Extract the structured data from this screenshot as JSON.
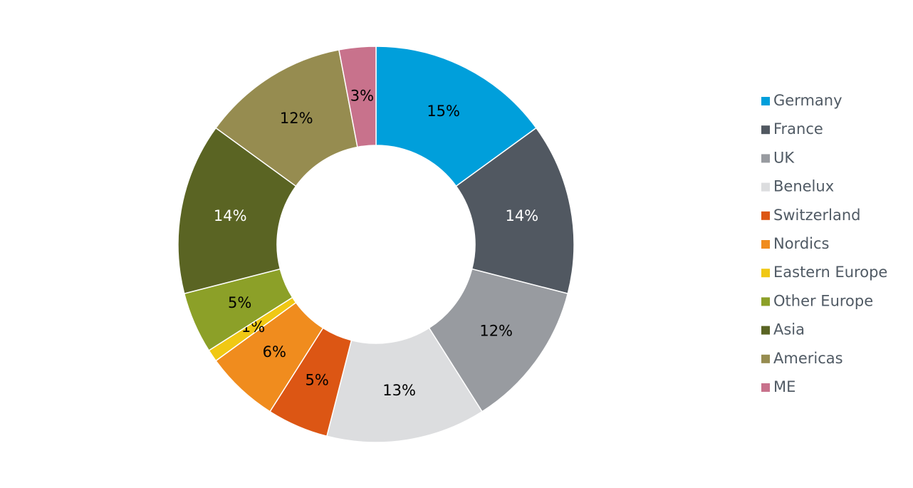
{
  "chart_data": {
    "type": "donut",
    "categories": [
      "Germany",
      "France",
      "UK",
      "Benelux",
      "Switzerland",
      "Nordics",
      "Eastern Europe",
      "Other Europe",
      "Asia",
      "Americas",
      "ME"
    ],
    "values": [
      15,
      14,
      12,
      13,
      5,
      6,
      1,
      5,
      14,
      12,
      3
    ],
    "value_labels": [
      "15%",
      "14%",
      "12%",
      "13%",
      "5%",
      "6%",
      "1%",
      "5%",
      "14%",
      "12%",
      "3%"
    ],
    "colors": [
      "#009fdb",
      "#515861",
      "#989ba0",
      "#dcdddf",
      "#dc5614",
      "#f08c1e",
      "#f0c814",
      "#8ca028",
      "#5a6423",
      "#968c50",
      "#c8728c"
    ],
    "legend": "right"
  }
}
